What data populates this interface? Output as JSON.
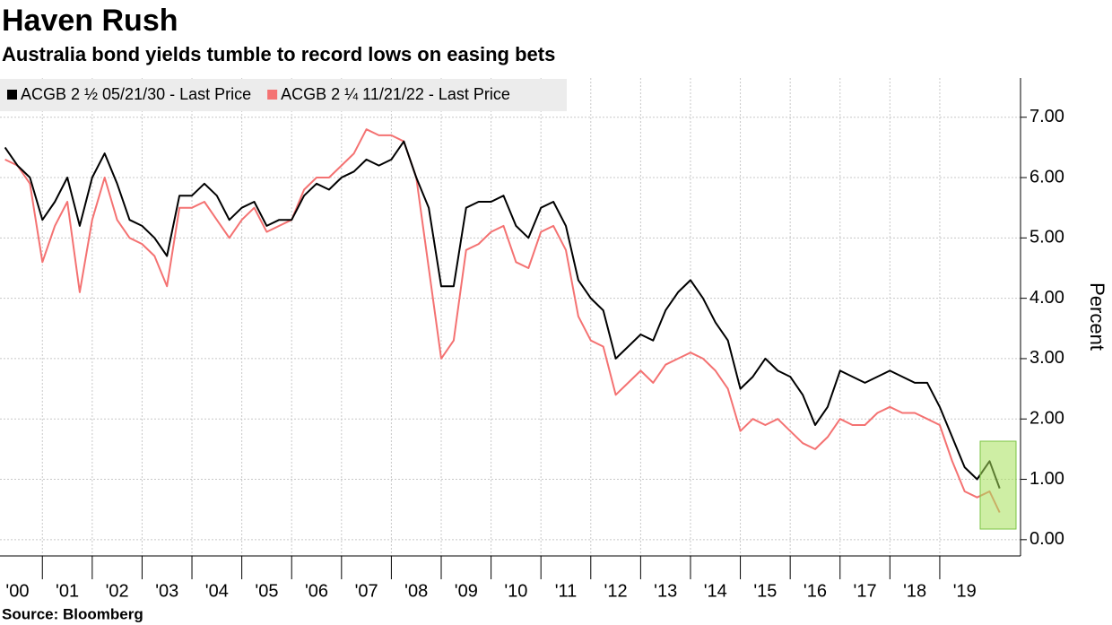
{
  "chart_data": {
    "type": "line",
    "title": "Haven Rush",
    "subtitle": "Australia bond yields tumble to record lows on easing bets",
    "y_label": "Percent",
    "source": "Source: Bloomberg",
    "x": [
      2000.25,
      2000.5,
      2000.75,
      2001,
      2001.25,
      2001.5,
      2001.75,
      2002,
      2002.25,
      2002.5,
      2002.75,
      2003,
      2003.25,
      2003.5,
      2003.75,
      2004,
      2004.25,
      2004.5,
      2004.75,
      2005,
      2005.25,
      2005.5,
      2005.75,
      2006,
      2006.25,
      2006.5,
      2006.75,
      2007,
      2007.25,
      2007.5,
      2007.75,
      2008,
      2008.25,
      2008.5,
      2008.75,
      2009,
      2009.25,
      2009.5,
      2009.75,
      2010,
      2010.25,
      2010.5,
      2010.75,
      2011,
      2011.25,
      2011.5,
      2011.75,
      2012,
      2012.25,
      2012.5,
      2012.75,
      2013,
      2013.25,
      2013.5,
      2013.75,
      2014,
      2014.25,
      2014.5,
      2014.75,
      2015,
      2015.25,
      2015.5,
      2015.75,
      2016,
      2016.25,
      2016.5,
      2016.75,
      2017,
      2017.25,
      2017.5,
      2017.75,
      2018,
      2018.25,
      2018.5,
      2018.75,
      2019,
      2019.25,
      2019.5,
      2019.75,
      2020,
      2020.2
    ],
    "series": [
      {
        "name": "ACGB 2 ½ 05/21/30 - Last Price",
        "color": "#000000",
        "values": [
          6.5,
          6.2,
          6.0,
          5.3,
          5.6,
          6.0,
          5.2,
          6.0,
          6.4,
          5.9,
          5.3,
          5.2,
          5.0,
          4.7,
          5.7,
          5.7,
          5.9,
          5.7,
          5.3,
          5.5,
          5.6,
          5.2,
          5.3,
          5.3,
          5.7,
          5.9,
          5.8,
          6.0,
          6.1,
          6.3,
          6.2,
          6.3,
          6.6,
          6.0,
          5.5,
          4.2,
          4.2,
          5.5,
          5.6,
          5.6,
          5.7,
          5.2,
          5.0,
          5.5,
          5.6,
          5.2,
          4.3,
          4.0,
          3.8,
          3.0,
          3.2,
          3.4,
          3.3,
          3.8,
          4.1,
          4.3,
          4.0,
          3.6,
          3.3,
          2.5,
          2.7,
          3.0,
          2.8,
          2.7,
          2.4,
          1.9,
          2.2,
          2.8,
          2.7,
          2.6,
          2.7,
          2.8,
          2.7,
          2.6,
          2.6,
          2.2,
          1.7,
          1.2,
          1.0,
          1.3,
          0.85
        ]
      },
      {
        "name": "ACGB 2 ¼ 11/21/22 - Last Price",
        "color": "#f47272",
        "values": [
          6.3,
          6.2,
          5.9,
          4.6,
          5.2,
          5.6,
          4.1,
          5.3,
          6.0,
          5.3,
          5.0,
          4.9,
          4.7,
          4.2,
          5.5,
          5.5,
          5.6,
          5.3,
          5.0,
          5.3,
          5.5,
          5.1,
          5.2,
          5.3,
          5.8,
          6.0,
          6.0,
          6.2,
          6.4,
          6.8,
          6.7,
          6.7,
          6.6,
          6.0,
          4.5,
          3.0,
          3.3,
          4.8,
          4.9,
          5.1,
          5.2,
          4.6,
          4.5,
          5.1,
          5.2,
          4.8,
          3.7,
          3.3,
          3.2,
          2.4,
          2.6,
          2.8,
          2.6,
          2.9,
          3.0,
          3.1,
          3.0,
          2.8,
          2.5,
          1.8,
          2.0,
          1.9,
          2.0,
          1.8,
          1.6,
          1.5,
          1.7,
          2.0,
          1.9,
          1.9,
          2.1,
          2.2,
          2.1,
          2.1,
          2.0,
          1.9,
          1.3,
          0.8,
          0.7,
          0.8,
          0.45
        ]
      }
    ],
    "xlim": [
      2000.15,
      2020.62
    ],
    "xticks": [
      {
        "value": 2000,
        "label": "'00"
      },
      {
        "value": 2001,
        "label": "'01"
      },
      {
        "value": 2002,
        "label": "'02"
      },
      {
        "value": 2003,
        "label": "'03"
      },
      {
        "value": 2004,
        "label": "'04"
      },
      {
        "value": 2005,
        "label": "'05"
      },
      {
        "value": 2006,
        "label": "'06"
      },
      {
        "value": 2007,
        "label": "'07"
      },
      {
        "value": 2008,
        "label": "'08"
      },
      {
        "value": 2009,
        "label": "'09"
      },
      {
        "value": 2010,
        "label": "'10"
      },
      {
        "value": 2011,
        "label": "'11"
      },
      {
        "value": 2012,
        "label": "'12"
      },
      {
        "value": 2013,
        "label": "'13"
      },
      {
        "value": 2014,
        "label": "'14"
      },
      {
        "value": 2015,
        "label": "'15"
      },
      {
        "value": 2016,
        "label": "'16"
      },
      {
        "value": 2017,
        "label": "'17"
      },
      {
        "value": 2018,
        "label": "'18"
      },
      {
        "value": 2019,
        "label": "'19"
      }
    ],
    "ylim": [
      -0.27,
      7.65
    ],
    "yticks": [
      {
        "value": 0,
        "label": "0.00"
      },
      {
        "value": 1,
        "label": "1.00"
      },
      {
        "value": 2,
        "label": "2.00"
      },
      {
        "value": 3,
        "label": "3.00"
      },
      {
        "value": 4,
        "label": "4.00"
      },
      {
        "value": 5,
        "label": "5.00"
      },
      {
        "value": 6,
        "label": "6.00"
      },
      {
        "value": 7,
        "label": "7.00"
      }
    ],
    "grid": true,
    "legend": "top-left"
  }
}
